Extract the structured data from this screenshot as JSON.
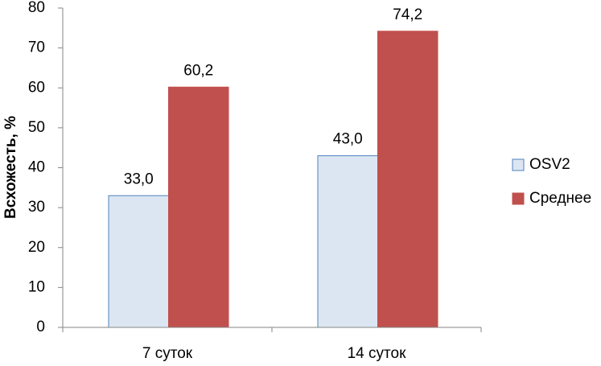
{
  "chart_data": {
    "type": "bar",
    "y_label": "Всхожесть, %",
    "categories": [
      "7 суток",
      "14 суток"
    ],
    "series": [
      {
        "name": "OSV2",
        "color": "#dce6f2",
        "edge_color": "#4f81bd",
        "values": [
          33.0,
          43.0
        ],
        "value_labels": [
          "33,0",
          "43,0"
        ]
      },
      {
        "name": "Среднее",
        "color": "#c0504d",
        "edge_color": "#c0504d",
        "values": [
          60.2,
          74.2
        ],
        "value_labels": [
          "60,2",
          "74,2"
        ]
      }
    ],
    "ylim": [
      0,
      80
    ],
    "yticks": [
      0,
      10,
      20,
      30,
      40,
      50,
      60,
      70,
      80
    ],
    "grid": false,
    "legend": "right"
  }
}
